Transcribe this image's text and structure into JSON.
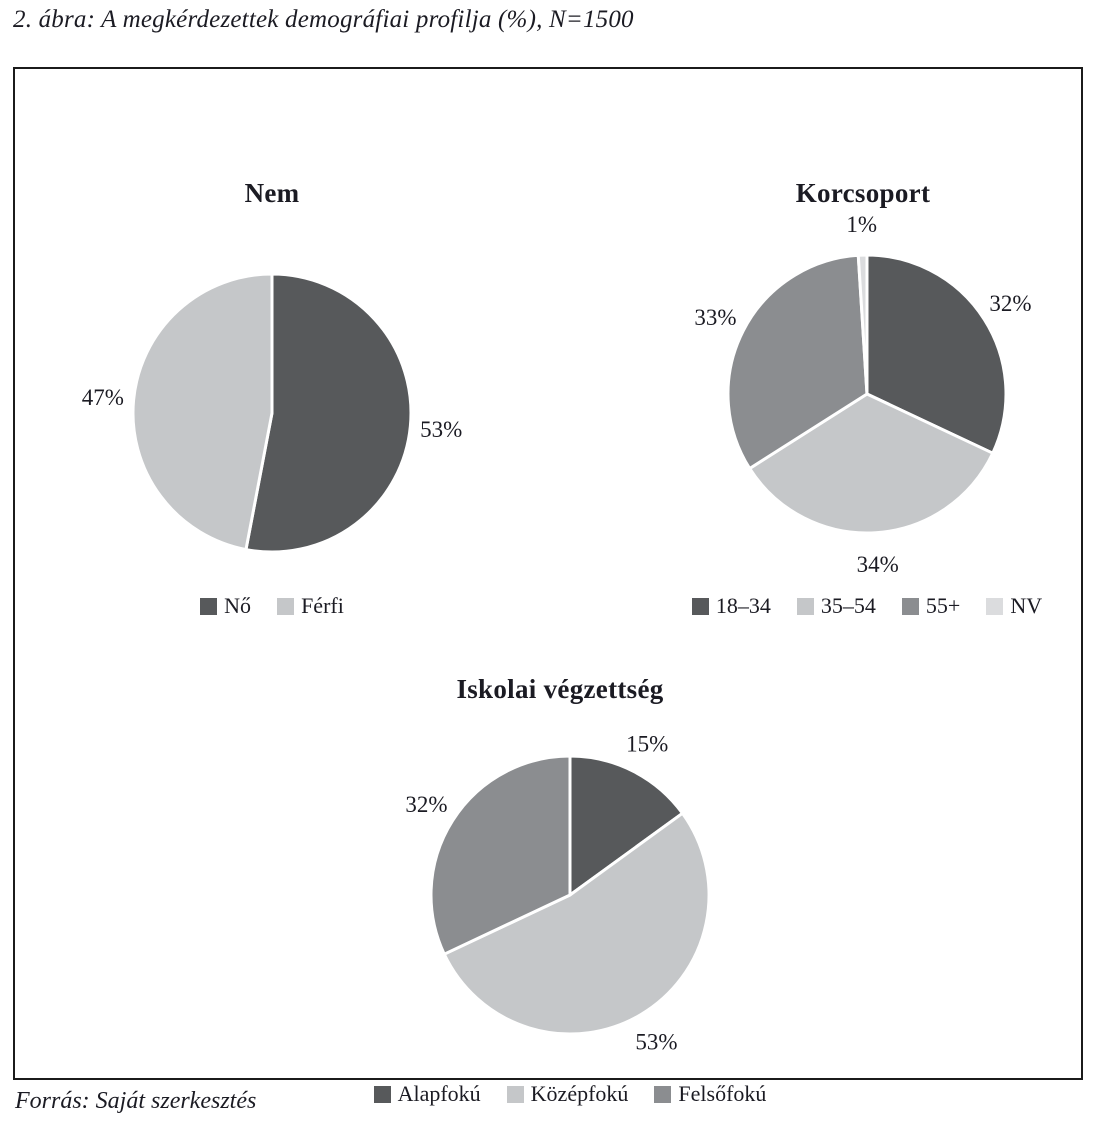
{
  "page": {
    "title": "2. ábra: A megkérdezettek demográfiai profilja (%), N=1500",
    "source": "Forrás: Saját szerkesztés"
  },
  "colors": {
    "dark": "#57595b",
    "light": "#c5c7c9",
    "medium": "#8b8d90",
    "pale": "#dbdcde",
    "text": "#1b1b23",
    "border": "#1b1b1b"
  },
  "chart_data": [
    {
      "type": "pie",
      "title": "Nem",
      "labels": [
        "Nő",
        "Férfi"
      ],
      "values": [
        53,
        47
      ],
      "value_labels": [
        "53%",
        "47%"
      ],
      "colors": [
        "#57595b",
        "#c5c7c9"
      ],
      "start_angle_deg": 0,
      "direction": "clockwise",
      "legend_position": "bottom"
    },
    {
      "type": "pie",
      "title": "Korcsoport",
      "labels": [
        "18–34",
        "35–54",
        "55+",
        "NV"
      ],
      "values": [
        32,
        34,
        33,
        1
      ],
      "value_labels": [
        "32%",
        "34%",
        "33%",
        "1%"
      ],
      "colors": [
        "#57595b",
        "#c5c7c9",
        "#8b8d90",
        "#dbdcde"
      ],
      "start_angle_deg": 0,
      "direction": "clockwise",
      "legend_position": "bottom"
    },
    {
      "type": "pie",
      "title": "Iskolai végzettség",
      "labels": [
        "Alapfokú",
        "Középfokú",
        "Felsőfokú"
      ],
      "values": [
        15,
        53,
        32
      ],
      "value_labels": [
        "15%",
        "53%",
        "32%"
      ],
      "colors": [
        "#57595b",
        "#c5c7c9",
        "#8b8d90"
      ],
      "start_angle_deg": 0,
      "direction": "clockwise",
      "legend_position": "bottom"
    }
  ]
}
